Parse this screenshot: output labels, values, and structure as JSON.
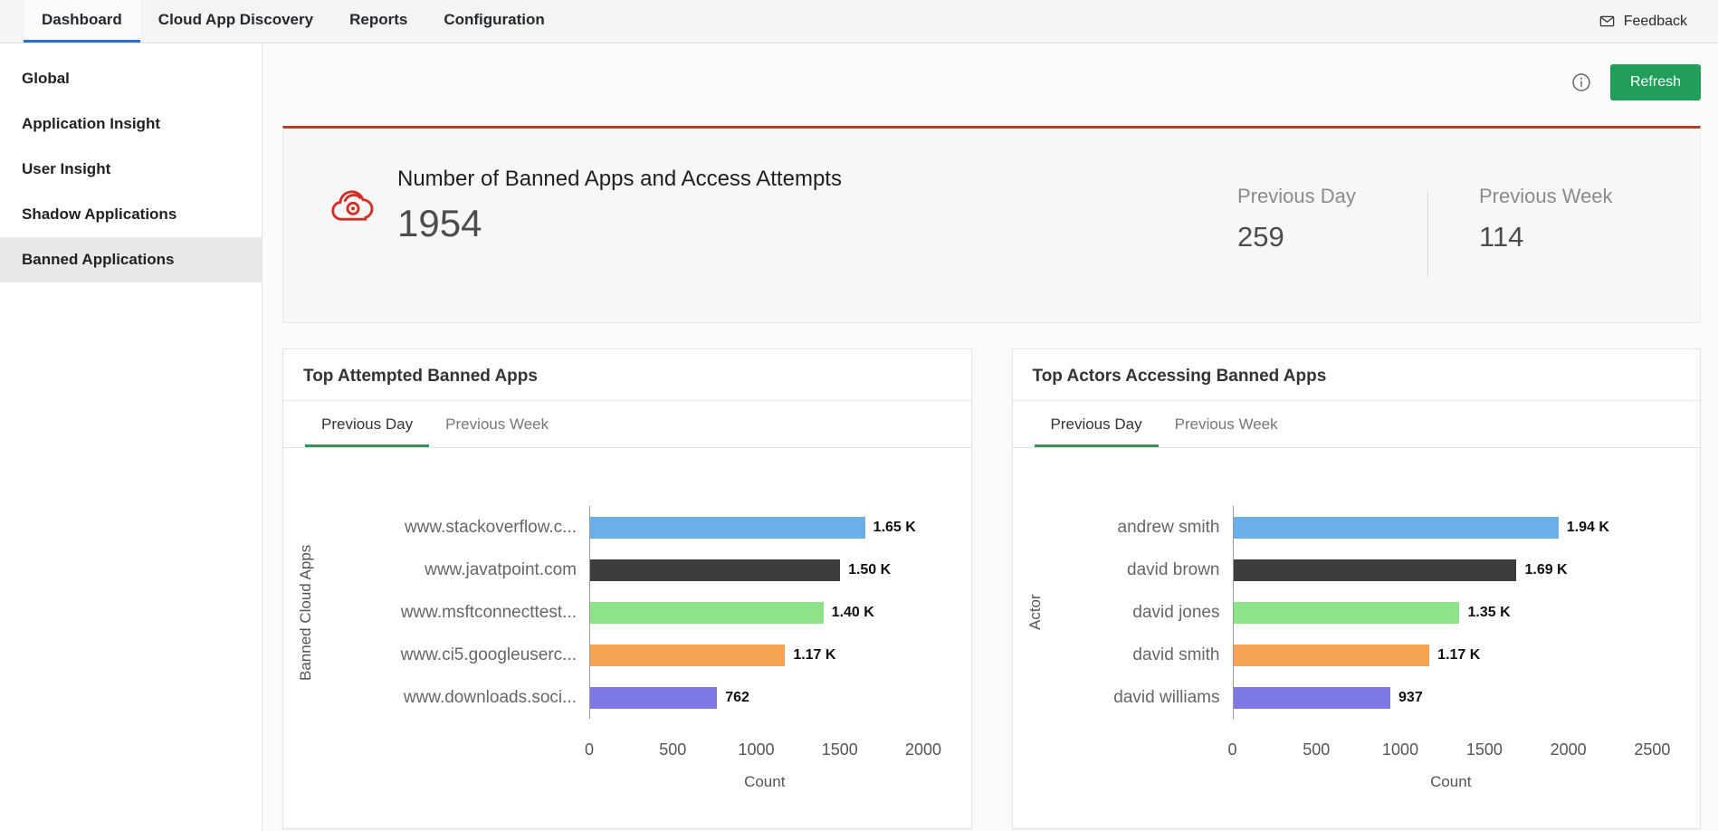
{
  "nav": {
    "tabs": [
      {
        "label": "Dashboard",
        "active": true
      },
      {
        "label": "Cloud App Discovery",
        "active": false
      },
      {
        "label": "Reports",
        "active": false
      },
      {
        "label": "Configuration",
        "active": false
      }
    ],
    "feedback_label": "Feedback",
    "active_color": "#2b6fd4"
  },
  "sidebar": {
    "items": [
      {
        "label": "Global",
        "active": false
      },
      {
        "label": "Application Insight",
        "active": false
      },
      {
        "label": "User Insight",
        "active": false
      },
      {
        "label": "Shadow Applications",
        "active": false
      },
      {
        "label": "Banned Applications",
        "active": true
      }
    ]
  },
  "toolbar": {
    "refresh_label": "Refresh",
    "refresh_color": "#219e58",
    "info_icon": "info-circle-icon"
  },
  "summary": {
    "icon": "banned-cloud-app-icon",
    "accent_color": "#d22f27",
    "title": "Number of Banned Apps and Access Attempts",
    "total": "1954",
    "stats": [
      {
        "label": "Previous Day",
        "value": "259"
      },
      {
        "label": "Previous Week",
        "value": "114"
      }
    ]
  },
  "chart_data": [
    {
      "type": "bar",
      "orientation": "horizontal",
      "title": "Top Attempted Banned Apps",
      "tabs": [
        "Previous Day",
        "Previous Week"
      ],
      "active_tab": "Previous Day",
      "categories": [
        "www.stackoverflow.c...",
        "www.javatpoint.com",
        "www.msftconnecttest...",
        "www.ci5.googleuserc...",
        "www.downloads.soci..."
      ],
      "values": [
        1650,
        1500,
        1400,
        1170,
        762
      ],
      "value_labels": [
        "1.65 K",
        "1.50 K",
        "1.40 K",
        "1.17 K",
        "762"
      ],
      "bar_colors": [
        "#6aafe8",
        "#3d3d3d",
        "#8ee288",
        "#f7a452",
        "#7d78e5"
      ],
      "xlabel": "Count",
      "ylabel": "Banned Cloud Apps",
      "xticks": [
        0,
        500,
        1000,
        1500,
        2000
      ],
      "xlim": [
        0,
        2100
      ],
      "grid": false,
      "legend": "none",
      "active_tab_color": "#1e9e59"
    },
    {
      "type": "bar",
      "orientation": "horizontal",
      "title": "Top Actors Accessing Banned Apps",
      "tabs": [
        "Previous Day",
        "Previous Week"
      ],
      "active_tab": "Previous Day",
      "categories": [
        "andrew smith",
        "david brown",
        "david jones",
        "david smith",
        "david williams"
      ],
      "values": [
        1940,
        1690,
        1350,
        1170,
        937
      ],
      "value_labels": [
        "1.94 K",
        "1.69 K",
        "1.35 K",
        "1.17 K",
        "937"
      ],
      "bar_colors": [
        "#6aafe8",
        "#3d3d3d",
        "#8ee288",
        "#f7a452",
        "#7d78e5"
      ],
      "xlabel": "Count",
      "ylabel": "Actor",
      "xticks": [
        0,
        500,
        1000,
        1500,
        2000,
        2500
      ],
      "xlim": [
        0,
        2600
      ],
      "grid": false,
      "legend": "none",
      "active_tab_color": "#1e9e59"
    }
  ]
}
